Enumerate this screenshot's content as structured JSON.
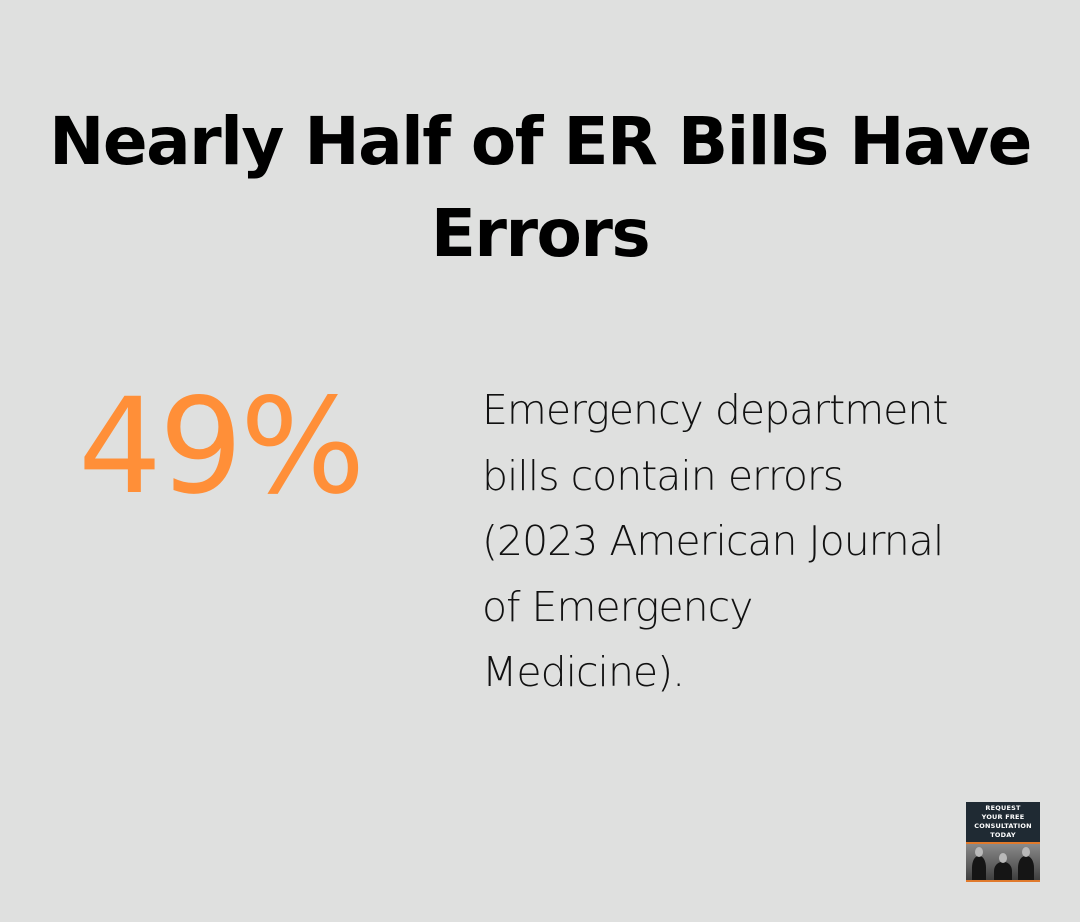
{
  "title": {
    "lines": [
      "Nearly Half of ER Bills Have",
      "Errors"
    ]
  },
  "stat": {
    "value": "49%",
    "color": "#ff8f38"
  },
  "description": {
    "lines": [
      "Emergency department",
      "bills contain errors",
      "(2023 American Journal",
      "of Emergency",
      "Medicine)."
    ]
  },
  "cta_banner": {
    "lines": [
      "REQUEST",
      "YOUR FREE",
      "CONSULTATION",
      "TODAY"
    ],
    "accent_color": "#e07a2c",
    "background_color": "#1f2a33"
  },
  "colors": {
    "background": "#dfe0df",
    "text": "#000000"
  }
}
